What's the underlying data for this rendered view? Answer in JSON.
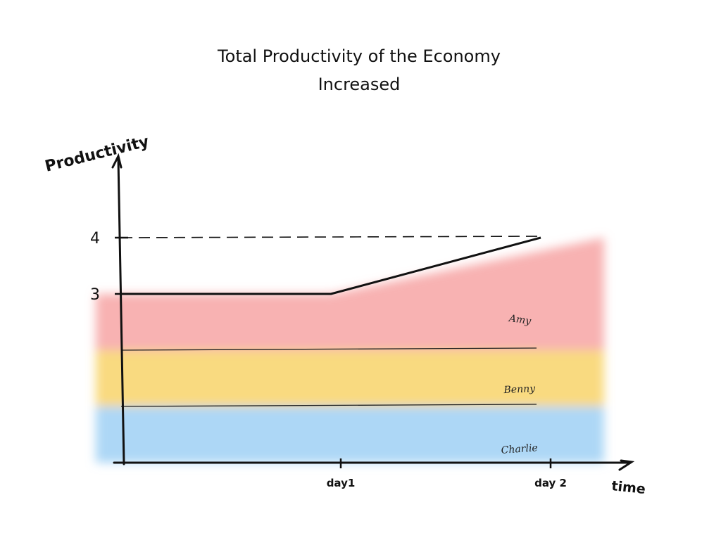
{
  "chart_data": {
    "type": "area",
    "title": [
      "Total Productivity of the Economy",
      "Increased"
    ],
    "xlabel": "time",
    "ylabel": "Productivity",
    "x_ticks": [
      "day1",
      "day 2"
    ],
    "y_ticks": [
      3,
      4
    ],
    "series": [
      {
        "name": "Charlie",
        "color": "#9fd0f5",
        "points": [
          {
            "x": "start",
            "y": 1
          },
          {
            "x": "day1",
            "y": 1
          },
          {
            "x": "day 2",
            "y": 1
          }
        ]
      },
      {
        "name": "Benny",
        "color": "#f8d36a",
        "points": [
          {
            "x": "start",
            "y": 1
          },
          {
            "x": "day1",
            "y": 1
          },
          {
            "x": "day 2",
            "y": 1
          }
        ]
      },
      {
        "name": "Amy",
        "color": "#f7a5a5",
        "points": [
          {
            "x": "start",
            "y": 1
          },
          {
            "x": "day1",
            "y": 1
          },
          {
            "x": "day 2",
            "y": 2
          }
        ]
      }
    ],
    "total": [
      {
        "x": "start",
        "y": 3
      },
      {
        "x": "day1",
        "y": 3
      },
      {
        "x": "day 2",
        "y": 4
      }
    ],
    "reference_line": {
      "y": 4,
      "style": "dashed"
    },
    "legend": "inline labels",
    "grid": false
  }
}
